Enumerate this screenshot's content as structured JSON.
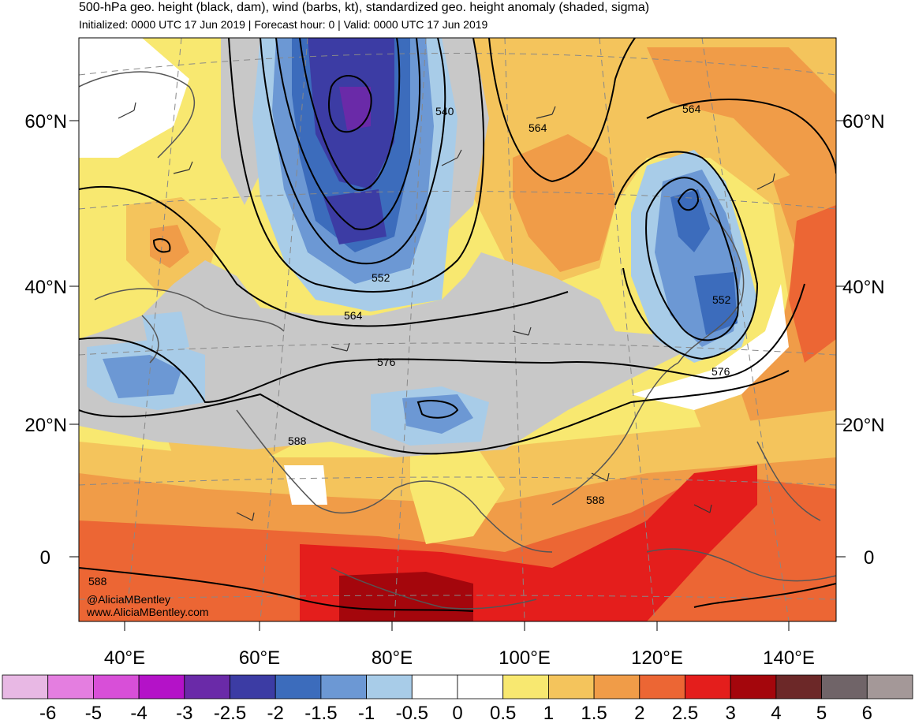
{
  "header": {
    "title": "500-hPa geo. height (black, dam), wind (barbs, kt), standardized geo. height anomaly (shaded, sigma)",
    "subtitle": "Initialized: 0000 UTC 17 Jun 2019 | Forecast hour: 0 | Valid: 0000 UTC 17 Jun 2019"
  },
  "axes": {
    "lat_labels": [
      "60°N",
      "40°N",
      "20°N",
      "0"
    ],
    "lon_labels": [
      "40°E",
      "60°E",
      "80°E",
      "100°E",
      "120°E",
      "140°E"
    ]
  },
  "contour_labels": [
    "540",
    "564",
    "564",
    "552",
    "564",
    "576",
    "552",
    "576",
    "588",
    "588",
    "588"
  ],
  "credit": {
    "handle": "@AliciaMBentley",
    "site": "www.AliciaMBentley.com"
  },
  "colorbar": {
    "labels": [
      "-6",
      "-5",
      "-4",
      "-3",
      "-2.5",
      "-2",
      "-1.5",
      "-1",
      "-0.5",
      "0",
      "0.5",
      "1",
      "1.5",
      "2",
      "2.5",
      "3",
      "4",
      "5",
      "6"
    ],
    "colors": [
      "#e8b8e4",
      "#e47ee0",
      "#d84fd8",
      "#b412c8",
      "#6a2aa8",
      "#3c3ca4",
      "#3c6cbc",
      "#6c98d4",
      "#a8cce8",
      "#ffffff",
      "#ffffff",
      "#f8e870",
      "#f4c45c",
      "#f09c48",
      "#ec6634",
      "#e41e1c",
      "#a4060c",
      "#6c2828",
      "#706468",
      "#a49898"
    ]
  },
  "colors": {
    "neutral_gray": "#c8c8c8",
    "contour": "#000000",
    "border": "#555555",
    "graticule": "#888888"
  }
}
